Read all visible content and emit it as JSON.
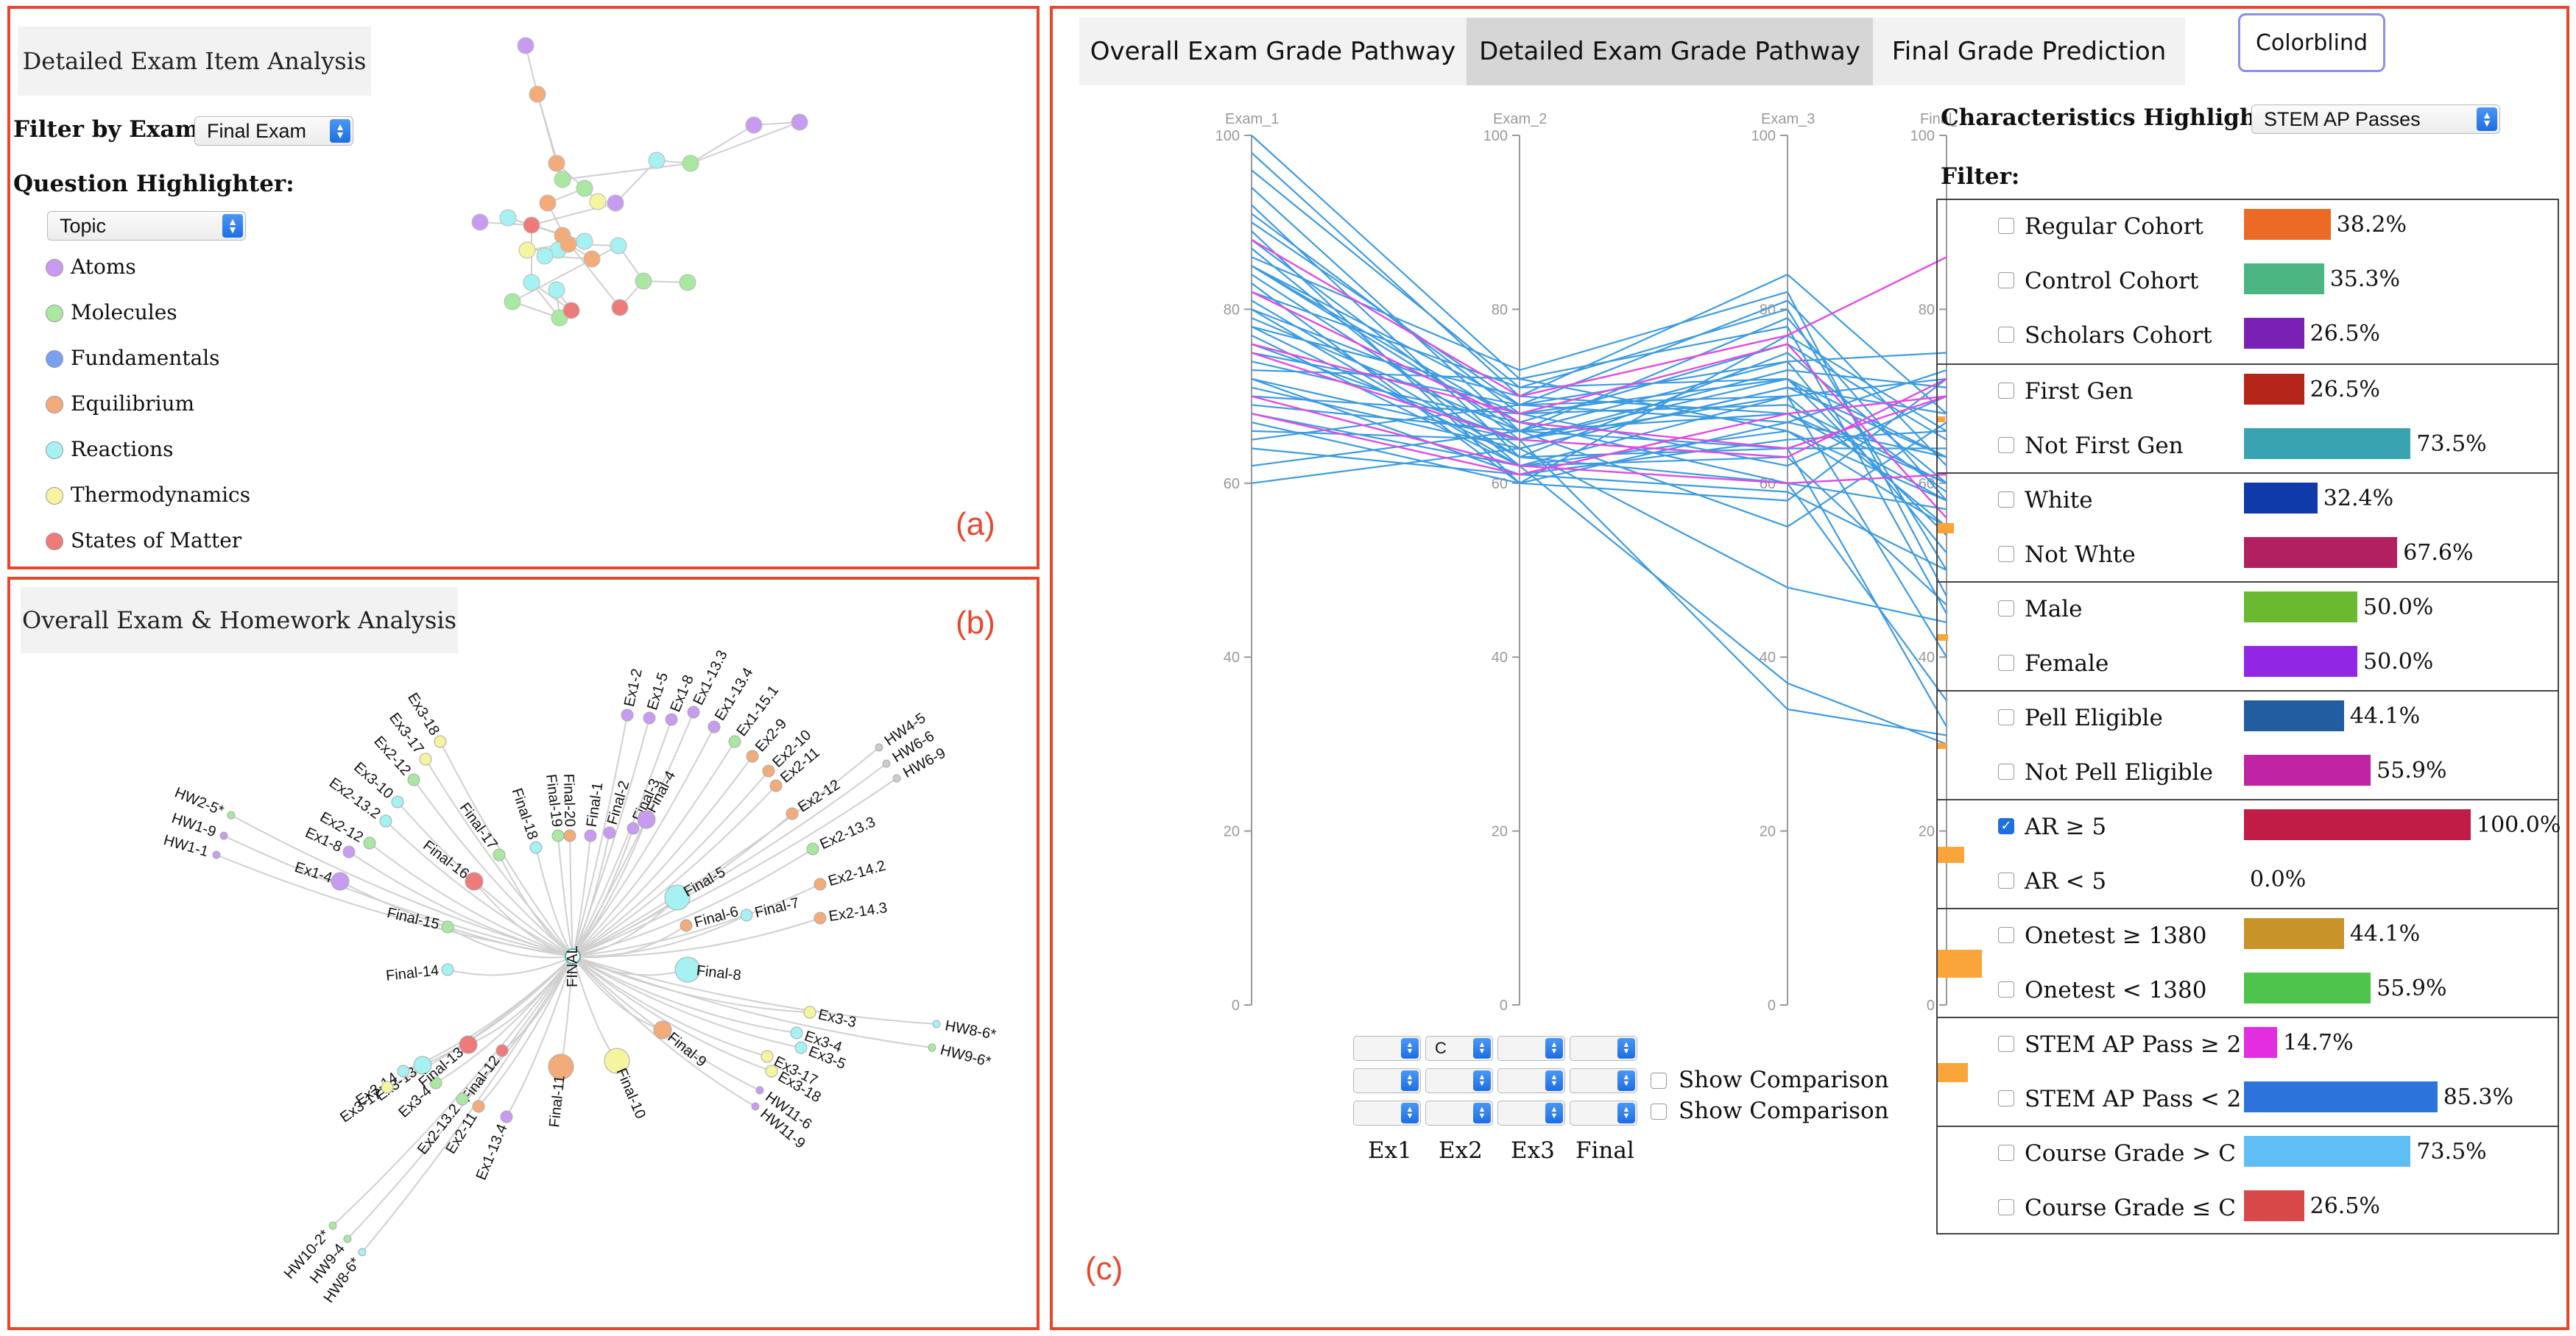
{
  "panel_a": {
    "title": "Detailed Exam Item Analysis",
    "filter_label": "Filter by Exam:",
    "filter_value": "Final Exam",
    "highlighter_label": "Question Highlighter:",
    "highlighter_value": "Topic",
    "legend": [
      {
        "label": "Atoms",
        "color": "#c79cf0"
      },
      {
        "label": "Molecules",
        "color": "#a8e8a0"
      },
      {
        "label": "Fundamentals",
        "color": "#7aa0f0"
      },
      {
        "label": "Equilibrium",
        "color": "#f4ab7a"
      },
      {
        "label": "Reactions",
        "color": "#a6f1f2"
      },
      {
        "label": "Thermodynamics",
        "color": "#f5f5a0"
      },
      {
        "label": "States of Matter",
        "color": "#ef7a7a"
      }
    ],
    "tag": "(a)"
  },
  "panel_b": {
    "title": "Overall Exam & Homework Analysis",
    "tag": "(b)",
    "root_label": "FINAL"
  },
  "panel_c": {
    "tabs": [
      "Overall Exam Grade Pathway",
      "Detailed Exam Grade Pathway",
      "Final Grade Prediction"
    ],
    "colorblind_label": "Colorblind",
    "axes": [
      "Exam_1",
      "Exam_2",
      "Exam_3",
      "Final_exam"
    ],
    "ticks": [
      "100",
      "80",
      "60",
      "40",
      "20",
      "0"
    ],
    "selectors": {
      "row1_ex2": "C"
    },
    "show_comparison": "Show Comparison",
    "axis_names": [
      "Ex1",
      "Ex2",
      "Ex3",
      "Final"
    ],
    "characteristics_label": "Characteristics Highlighter:",
    "characteristics_value": "STEM AP Passes",
    "filter_label": "Filter:",
    "tag": "(c)",
    "filters": [
      {
        "rows": [
          {
            "label": "Regular Cohort",
            "pct": "38.2%",
            "value": 38.2,
            "color": "#eb6a25",
            "checked": false
          },
          {
            "label": "Control Cohort",
            "pct": "35.3%",
            "value": 35.3,
            "color": "#4bb682",
            "checked": false
          },
          {
            "label": "Scholars Cohort",
            "pct": "26.5%",
            "value": 26.5,
            "color": "#7a20b4",
            "checked": false
          }
        ],
        "mark": 0
      },
      {
        "rows": [
          {
            "label": "First Gen",
            "pct": "26.5%",
            "value": 26.5,
            "color": "#b42418",
            "checked": false
          },
          {
            "label": "Not First Gen",
            "pct": "73.5%",
            "value": 73.5,
            "color": "#3aa3b2",
            "checked": false
          }
        ],
        "mark": 0.2
      },
      {
        "rows": [
          {
            "label": "White",
            "pct": "32.4%",
            "value": 32.4,
            "color": "#0e3aaa",
            "checked": false
          },
          {
            "label": "Not Whte",
            "pct": "67.6%",
            "value": 67.6,
            "color": "#b12162",
            "checked": false
          }
        ],
        "mark": 0.45
      },
      {
        "rows": [
          {
            "label": "Male",
            "pct": "50.0%",
            "value": 50.0,
            "color": "#6ab92e",
            "checked": false
          },
          {
            "label": "Female",
            "pct": "50.0%",
            "value": 50.0,
            "color": "#9126e4",
            "checked": false
          }
        ],
        "mark": 0.3
      },
      {
        "rows": [
          {
            "label": "Pell Eligible",
            "pct": "44.1%",
            "value": 44.1,
            "color": "#215da0",
            "checked": false
          },
          {
            "label": "Not Pell Eligible",
            "pct": "55.9%",
            "value": 55.9,
            "color": "#c024a4",
            "checked": false
          }
        ],
        "mark": 0.25
      },
      {
        "rows": [
          {
            "label": "AR ≥ 5",
            "pct": "100.0%",
            "value": 100.0,
            "color": "#c01c45",
            "checked": true
          },
          {
            "label": "AR < 5",
            "pct": "0.0%",
            "value": 0.0,
            "color": "#888888",
            "checked": false
          }
        ],
        "mark": 0.75
      },
      {
        "rows": [
          {
            "label": "Onetest ≥ 1380",
            "pct": "44.1%",
            "value": 44.1,
            "color": "#c89328",
            "checked": false
          },
          {
            "label": "Onetest < 1380",
            "pct": "55.9%",
            "value": 55.9,
            "color": "#4cc54a",
            "checked": false
          }
        ],
        "mark": 1.25
      },
      {
        "rows": [
          {
            "label": "STEM AP Pass ≥ 2",
            "pct": "14.7%",
            "value": 14.7,
            "color": "#e32ee0",
            "checked": false
          },
          {
            "label": "STEM AP Pass < 2",
            "pct": "85.3%",
            "value": 85.3,
            "color": "#2d73dc",
            "checked": false
          }
        ],
        "mark": 0.85
      },
      {
        "rows": [
          {
            "label": "Course Grade > C",
            "pct": "73.5%",
            "value": 73.5,
            "color": "#60bef6",
            "checked": false
          },
          {
            "label": "Course Grade ≤ C",
            "pct": "26.5%",
            "value": 26.5,
            "color": "#d84848",
            "checked": false
          }
        ],
        "mark": 0
      }
    ]
  },
  "tree": {
    "root": "FINAL",
    "leaves": [
      {
        "label": "HW2-5*",
        "color": "#a8e8a0",
        "size": "s"
      },
      {
        "label": "HW1-9",
        "color": "#c79cf0",
        "size": "s"
      },
      {
        "label": "HW1-1",
        "color": "#c79cf0",
        "size": "s"
      },
      {
        "label": "Ex1-8",
        "color": "#c79cf0",
        "size": "m"
      },
      {
        "label": "Ex1-4",
        "color": "#c79cf0",
        "size": "l"
      },
      {
        "label": "Ex2-12",
        "color": "#a8e8a0",
        "size": "m"
      },
      {
        "label": "Ex2-13.2",
        "color": "#a6f1f2",
        "size": "m"
      },
      {
        "label": "Ex3-10",
        "color": "#a6f1f2",
        "size": "m"
      },
      {
        "label": "Ex2-12",
        "color": "#a8e8a0",
        "size": "m"
      },
      {
        "label": "Ex3-17",
        "color": "#f5f5a0",
        "size": "m"
      },
      {
        "label": "Ex3-18",
        "color": "#f5f5a0",
        "size": "m"
      },
      {
        "label": "Final-16",
        "color": "#ef7a7a",
        "size": "l"
      },
      {
        "label": "Final-17",
        "color": "#a8e8a0",
        "size": "m"
      },
      {
        "label": "Final-18",
        "color": "#a6f1f2",
        "size": "m"
      },
      {
        "label": "Final-19",
        "color": "#a8e8a0",
        "size": "m"
      },
      {
        "label": "Final-20",
        "color": "#f4ab7a",
        "size": "m"
      },
      {
        "label": "Final-1",
        "color": "#c79cf0",
        "size": "m"
      },
      {
        "label": "Final-2",
        "color": "#c79cf0",
        "size": "m"
      },
      {
        "label": "Final-3",
        "color": "#c79cf0",
        "size": "m"
      },
      {
        "label": "Final-4",
        "color": "#c79cf0",
        "size": "l"
      },
      {
        "label": "Ex1-2",
        "color": "#c79cf0",
        "size": "m"
      },
      {
        "label": "Ex1-5",
        "color": "#c79cf0",
        "size": "m"
      },
      {
        "label": "Ex1-8",
        "color": "#c79cf0",
        "size": "m"
      },
      {
        "label": "Ex1-13.3",
        "color": "#c79cf0",
        "size": "m"
      },
      {
        "label": "Ex1-13.4",
        "color": "#c79cf0",
        "size": "m"
      },
      {
        "label": "Ex1-15.1",
        "color": "#a8e8a0",
        "size": "m"
      },
      {
        "label": "Final-5",
        "color": "#a6f1f2",
        "size": "xl"
      },
      {
        "label": "Ex2-9",
        "color": "#f4ab7a",
        "size": "m"
      },
      {
        "label": "Ex2-10",
        "color": "#f4ab7a",
        "size": "m"
      },
      {
        "label": "HW4-5",
        "color": "#cccccc",
        "size": "s"
      },
      {
        "label": "HW6-6",
        "color": "#cccccc",
        "size": "s"
      },
      {
        "label": "HW6-9",
        "color": "#cccccc",
        "size": "s"
      },
      {
        "label": "Ex2-11",
        "color": "#f4ab7a",
        "size": "m"
      },
      {
        "label": "Final-6",
        "color": "#f4ab7a",
        "size": "m"
      },
      {
        "label": "Final-7",
        "color": "#a6f1f2",
        "size": "m"
      },
      {
        "label": "Ex2-12",
        "color": "#f4ab7a",
        "size": "m"
      },
      {
        "label": "Ex2-13.3",
        "color": "#a8e8a0",
        "size": "m"
      },
      {
        "label": "Ex2-14.2",
        "color": "#f4ab7a",
        "size": "m"
      },
      {
        "label": "Ex2-14.3",
        "color": "#f4ab7a",
        "size": "m"
      },
      {
        "label": "Final-8",
        "color": "#a6f1f2",
        "size": "xl"
      },
      {
        "label": "Ex3-3",
        "color": "#f5f5a0",
        "size": "m"
      },
      {
        "label": "HW8-6*",
        "color": "#a6f1f2",
        "size": "s"
      },
      {
        "label": "HW9-6*",
        "color": "#a8e8a0",
        "size": "s"
      },
      {
        "label": "Ex3-4",
        "color": "#a6f1f2",
        "size": "m"
      },
      {
        "label": "Ex3-5",
        "color": "#a6f1f2",
        "size": "m"
      },
      {
        "label": "Ex3-17",
        "color": "#f5f5a0",
        "size": "m"
      },
      {
        "label": "Ex3-18",
        "color": "#f5f5a0",
        "size": "m"
      },
      {
        "label": "HW11-6",
        "color": "#c79cf0",
        "size": "s"
      },
      {
        "label": "HW11-9",
        "color": "#c79cf0",
        "size": "s"
      },
      {
        "label": "Final-9",
        "color": "#f4ab7a",
        "size": "l"
      },
      {
        "label": "Final-10",
        "color": "#f5f5a0",
        "size": "xl"
      },
      {
        "label": "Final-11",
        "color": "#f4ab7a",
        "size": "xl"
      },
      {
        "label": "Final-12",
        "color": "#ef7a7a",
        "size": "m"
      },
      {
        "label": "Ex1-13.4",
        "color": "#c79cf0",
        "size": "m"
      },
      {
        "label": "Ex2-11",
        "color": "#f4ab7a",
        "size": "m"
      },
      {
        "label": "Ex2-13.2",
        "color": "#a8e8a0",
        "size": "m"
      },
      {
        "label": "Ex3-4",
        "color": "#a8e8a0",
        "size": "m"
      },
      {
        "label": "Ex3-13",
        "color": "#a6f1f2",
        "size": "l"
      },
      {
        "label": "Ex3-14",
        "color": "#a6f1f2",
        "size": "m"
      },
      {
        "label": "Ex3-17",
        "color": "#f5f5a0",
        "size": "m"
      },
      {
        "label": "HW10-2*",
        "color": "#a8e8a0",
        "size": "s"
      },
      {
        "label": "HW9-4",
        "color": "#a8e8a0",
        "size": "s"
      },
      {
        "label": "HW8-6*",
        "color": "#a6f1f2",
        "size": "s"
      },
      {
        "label": "Final-13",
        "color": "#ef7a7a",
        "size": "l"
      },
      {
        "label": "Final-14",
        "color": "#a6f1f2",
        "size": "m"
      },
      {
        "label": "Final-15",
        "color": "#a8e8a0",
        "size": "m"
      }
    ]
  },
  "network": {
    "nodes": [
      {
        "color": "#c79cf0"
      },
      {
        "color": "#f4ab7a"
      },
      {
        "color": "#c79cf0"
      },
      {
        "color": "#c79cf0"
      },
      {
        "color": "#a8e8a0"
      },
      {
        "color": "#a6f1f2"
      },
      {
        "color": "#a8e8a0"
      },
      {
        "color": "#f4ab7a"
      },
      {
        "color": "#a8e8a0"
      },
      {
        "color": "#f5f5a0"
      },
      {
        "color": "#c79cf0"
      },
      {
        "color": "#ef7a7a"
      },
      {
        "color": "#f4ab7a"
      },
      {
        "color": "#a6f1f2"
      },
      {
        "color": "#f5f5a0"
      },
      {
        "color": "#a6f1f2"
      },
      {
        "color": "#f4ab7a"
      },
      {
        "color": "#a6f1f2"
      },
      {
        "color": "#a8e8a0"
      },
      {
        "color": "#a8e8a0"
      },
      {
        "color": "#a6f1f2"
      },
      {
        "color": "#ef7a7a"
      },
      {
        "color": "#a6f1f2"
      },
      {
        "color": "#ef7a7a"
      },
      {
        "color": "#a8e8a0"
      },
      {
        "color": "#a8e8a0"
      },
      {
        "color": "#a6f1f2"
      },
      {
        "color": "#f4ab7a"
      },
      {
        "color": "#a6f1f2"
      },
      {
        "color": "#c79cf0"
      },
      {
        "color": "#f4ab7a"
      }
    ]
  },
  "pathways": {
    "highlight_color": "#e24be0",
    "line_color": "#3d9be0",
    "students": [
      [
        100,
        72,
        66,
        55
      ],
      [
        98,
        70,
        68,
        60
      ],
      [
        96,
        71,
        72,
        63
      ],
      [
        94,
        66,
        79,
        58
      ],
      [
        92,
        63,
        75,
        60
      ],
      [
        91,
        68,
        62,
        70
      ],
      [
        90,
        69,
        70,
        72
      ],
      [
        89,
        60,
        77,
        66
      ],
      [
        88,
        65,
        72,
        59
      ],
      [
        87,
        62,
        70,
        55
      ],
      [
        86,
        73,
        82,
        47
      ],
      [
        85,
        69,
        74,
        52
      ],
      [
        85,
        67,
        76,
        65
      ],
      [
        84,
        64,
        71,
        68
      ],
      [
        83,
        60,
        67,
        73
      ],
      [
        82,
        71,
        80,
        50
      ],
      [
        81,
        63,
        64,
        64
      ],
      [
        80,
        68,
        69,
        60
      ],
      [
        79,
        66,
        74,
        75
      ],
      [
        78,
        70,
        84,
        68
      ],
      [
        77,
        62,
        66,
        58
      ],
      [
        76,
        65,
        73,
        71
      ],
      [
        75,
        69,
        81,
        62
      ],
      [
        74,
        67,
        60,
        57
      ],
      [
        73,
        72,
        78,
        45
      ],
      [
        72,
        61,
        65,
        66
      ],
      [
        71,
        64,
        71,
        63
      ],
      [
        70,
        68,
        72,
        54
      ],
      [
        69,
        66,
        68,
        58
      ],
      [
        68,
        62,
        63,
        46
      ],
      [
        67,
        60,
        58,
        72
      ],
      [
        66,
        65,
        70,
        40
      ],
      [
        65,
        69,
        67,
        63
      ],
      [
        64,
        61,
        59,
        50
      ],
      [
        62,
        66,
        55,
        67
      ],
      [
        60,
        64,
        48,
        44
      ],
      [
        78,
        63,
        60,
        35
      ],
      [
        85,
        66,
        64,
        32
      ],
      [
        80,
        62,
        37,
        30
      ],
      [
        72,
        65,
        34,
        31
      ]
    ],
    "highlighted": [
      [
        88,
        70,
        77,
        86
      ],
      [
        82,
        67,
        64,
        70
      ],
      [
        76,
        68,
        76,
        56
      ],
      [
        70,
        62,
        60,
        61
      ],
      [
        68,
        61,
        68,
        70
      ],
      [
        75,
        65,
        63,
        72
      ]
    ]
  }
}
